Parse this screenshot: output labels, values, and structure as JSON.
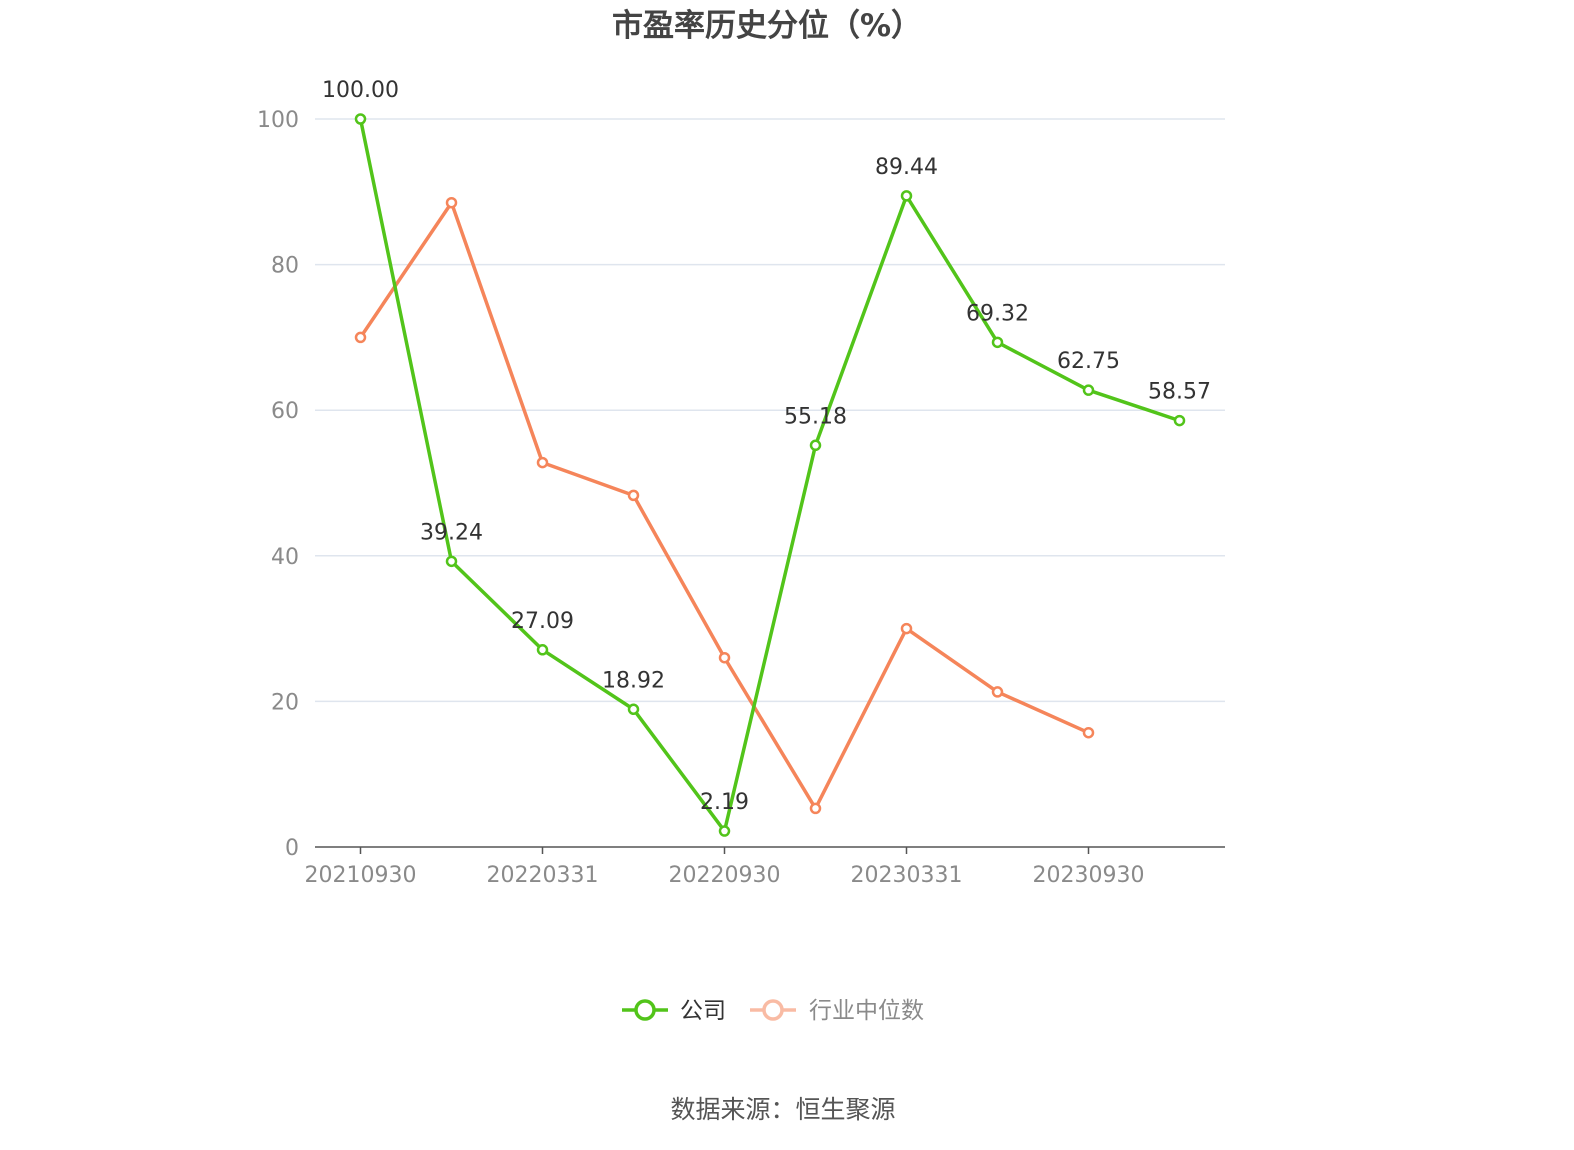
{
  "chart_data": {
    "type": "line",
    "title": "市盈率历史分位（%）",
    "categories": [
      "20210930",
      "",
      "20220331",
      "",
      "20220930",
      "",
      "20230331",
      "",
      "20230930",
      ""
    ],
    "x_tick_labels": [
      "20210930",
      "20220331",
      "20220930",
      "20230331",
      "20230930"
    ],
    "ylim": [
      0,
      100
    ],
    "y_ticks": [
      "0",
      "20",
      "40",
      "60",
      "80",
      "100"
    ],
    "grid": true,
    "legend_position": "bottom-center",
    "series": [
      {
        "name": "公司",
        "color": "#52c41a",
        "values": [
          100.0,
          39.24,
          27.09,
          18.92,
          2.19,
          55.18,
          89.44,
          69.32,
          62.75,
          58.57
        ],
        "labels": [
          "100.00",
          "39.24",
          "27.09",
          "18.92",
          "2.19",
          "55.18",
          "89.44",
          "69.32",
          "62.75",
          "58.57"
        ]
      },
      {
        "name": "行业中位数",
        "color": "#f5855a",
        "values": [
          70.0,
          88.5,
          52.8,
          48.3,
          26.0,
          5.3,
          30.0,
          21.3,
          15.7,
          null
        ]
      }
    ],
    "source": "数据来源：恒生聚源"
  }
}
